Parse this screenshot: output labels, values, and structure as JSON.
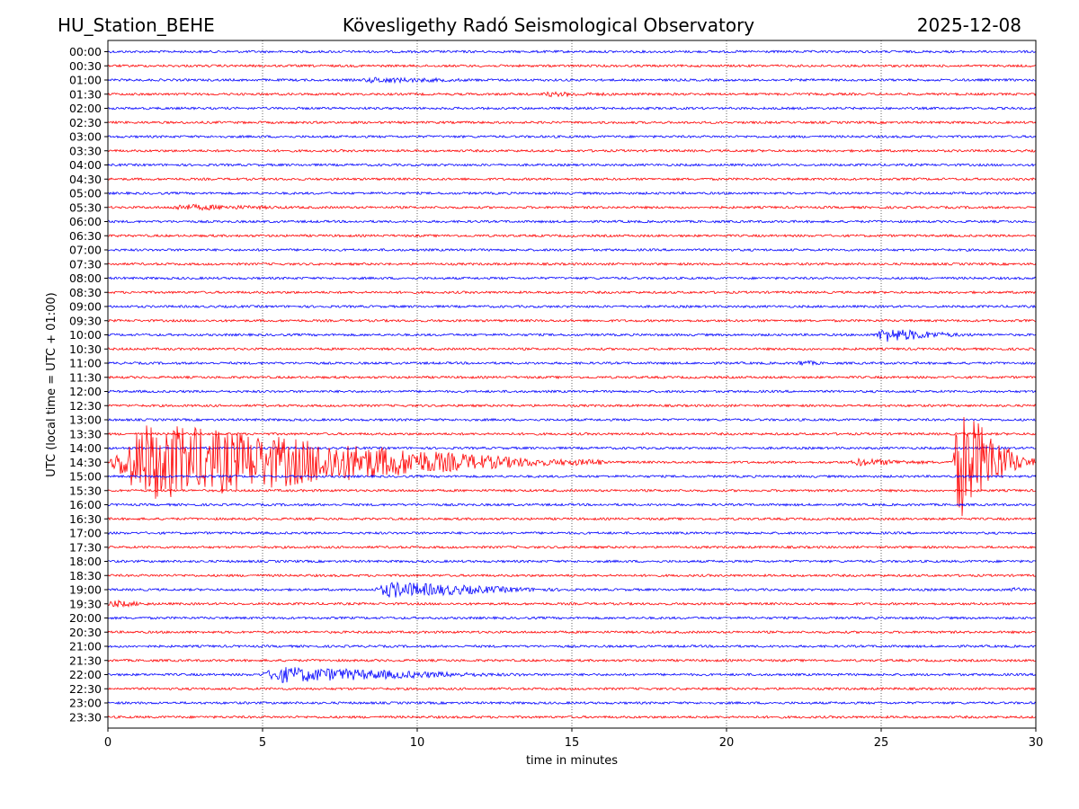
{
  "header": {
    "station": "HU_Station_BEHE",
    "observatory": "Kövesligethy Radó Seismological Observatory",
    "date": "2025-12-08"
  },
  "chart_data": {
    "type": "line",
    "title": "Kövesligethy Radó Seismological Observatory",
    "xlabel": "time in minutes",
    "ylabel": "UTC (local time = UTC + 01:00)",
    "xlim": [
      0,
      30
    ],
    "x_ticks": [
      0,
      5,
      10,
      15,
      20,
      25,
      30
    ],
    "x_gridlines": [
      5,
      10,
      15,
      20,
      25
    ],
    "trace_colors": [
      "#0000ff",
      "#ff0000"
    ],
    "rows": [
      "00:00",
      "00:30",
      "01:00",
      "01:30",
      "02:00",
      "02:30",
      "03:00",
      "03:30",
      "04:00",
      "04:30",
      "05:00",
      "05:30",
      "06:00",
      "06:30",
      "07:00",
      "07:30",
      "08:00",
      "08:30",
      "09:00",
      "09:30",
      "10:00",
      "10:30",
      "11:00",
      "11:30",
      "12:00",
      "12:30",
      "13:00",
      "13:30",
      "14:00",
      "14:30",
      "15:00",
      "15:30",
      "16:00",
      "16:30",
      "17:00",
      "17:30",
      "18:00",
      "18:30",
      "19:00",
      "19:30",
      "20:00",
      "20:30",
      "21:00",
      "21:30",
      "22:00",
      "22:30",
      "23:00",
      "23:30"
    ],
    "events": [
      {
        "row": "01:00",
        "start_min": 8.2,
        "end_min": 12.5,
        "amplitude": 0.28
      },
      {
        "row": "01:30",
        "start_min": 14.0,
        "end_min": 17.0,
        "amplitude": 0.2
      },
      {
        "row": "05:30",
        "start_min": 2.0,
        "end_min": 6.5,
        "amplitude": 0.3
      },
      {
        "row": "10:00",
        "start_min": 24.8,
        "end_min": 28.0,
        "amplitude": 0.9
      },
      {
        "row": "11:00",
        "start_min": 22.3,
        "end_min": 23.2,
        "amplitude": 0.3
      },
      {
        "row": "14:30",
        "start_min": 0.0,
        "end_min": 16.0,
        "amplitude": 5.5
      },
      {
        "row": "14:30",
        "start_min": 24.0,
        "end_min": 27.0,
        "amplitude": 0.4
      },
      {
        "row": "14:30",
        "start_min": 27.3,
        "end_min": 30.0,
        "amplitude": 8.0
      },
      {
        "row": "19:00",
        "start_min": 8.6,
        "end_min": 15.0,
        "amplitude": 1.0
      },
      {
        "row": "19:00",
        "start_min": 29.2,
        "end_min": 30.0,
        "amplitude": 0.2
      },
      {
        "row": "19:30",
        "start_min": 0.0,
        "end_min": 1.6,
        "amplitude": 0.4
      },
      {
        "row": "22:00",
        "start_min": 4.9,
        "end_min": 13.5,
        "amplitude": 1.0
      }
    ]
  }
}
